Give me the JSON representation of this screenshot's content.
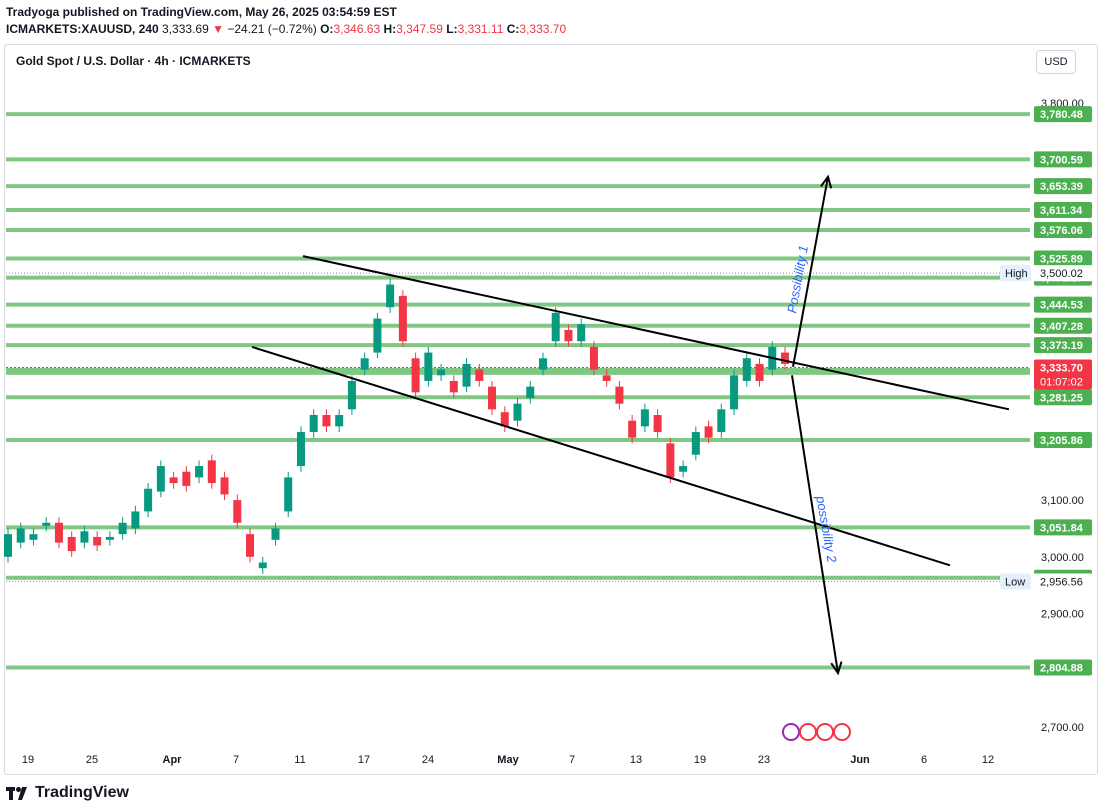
{
  "header": {
    "publisher_line": "Tradyoga published on TradingView.com, May 26, 2025 03:54:59 EST",
    "symbol": "ICMARKETS:XAUUSD, 240",
    "last": "3,333.69",
    "arrow": "▼",
    "change": "−24.21 (−0.72%)",
    "o_label": "O:",
    "o_value": "3,346.63",
    "h_label": "H:",
    "h_value": "3,347.59",
    "l_label": "L:",
    "l_value": "3,331.11",
    "c_label": "C:",
    "c_value": "3,333.70"
  },
  "chart_title": "Gold Spot / U.S. Dollar · 4h · ICMARKETS",
  "currency_button": "USD",
  "footer": {
    "brand": "TradingView",
    "logo_icon": "tradingview-logo-icon"
  },
  "colors": {
    "level_line": "#81c784",
    "level_label": "#4caf50",
    "candle_up": "#089981",
    "candle_down": "#f23645",
    "last_price": "#f23645",
    "annotation_text": "#2962ff",
    "trendline": "#000000"
  },
  "chart_data": {
    "type": "candlestick",
    "symbol": "XAUUSD",
    "interval": "4h",
    "ylim": [
      2660,
      3850
    ],
    "y_ticks": [
      {
        "value": 2700,
        "label": "2,700.00"
      },
      {
        "value": 2900,
        "label": "2,900.00"
      },
      {
        "value": 3000,
        "label": "3,000.00"
      },
      {
        "value": 3100,
        "label": "3,100.00"
      },
      {
        "value": 3800,
        "label": "3,800.00"
      }
    ],
    "x_ticks": [
      {
        "label": "19",
        "bold": false
      },
      {
        "label": "25",
        "bold": false
      },
      {
        "label": "Apr",
        "bold": true
      },
      {
        "label": "7",
        "bold": false
      },
      {
        "label": "11",
        "bold": false
      },
      {
        "label": "17",
        "bold": false
      },
      {
        "label": "24",
        "bold": false
      },
      {
        "label": "May",
        "bold": true
      },
      {
        "label": "7",
        "bold": false
      },
      {
        "label": "13",
        "bold": false
      },
      {
        "label": "19",
        "bold": false
      },
      {
        "label": "23",
        "bold": false
      },
      {
        "label": "Jun",
        "bold": true
      },
      {
        "label": "6",
        "bold": false
      },
      {
        "label": "12",
        "bold": false
      }
    ],
    "levels": [
      {
        "value": 3780.48,
        "label": "3,780.48"
      },
      {
        "value": 3700.59,
        "label": "3,700.59"
      },
      {
        "value": 3653.39,
        "label": "3,653.39"
      },
      {
        "value": 3611.34,
        "label": "3,611.34"
      },
      {
        "value": 3576.06,
        "label": "3,576.06"
      },
      {
        "value": 3525.89,
        "label": "3,525.89"
      },
      {
        "value": 3492.19,
        "label": "3,492.19"
      },
      {
        "value": 3444.53,
        "label": "3,444.53"
      },
      {
        "value": 3407.28,
        "label": "3,407.28"
      },
      {
        "value": 3373.19,
        "label": "3,373.19"
      },
      {
        "value": 3329.49,
        "label": "3,329.49"
      },
      {
        "value": 3324.29,
        "label": "3,324.29"
      },
      {
        "value": 3281.25,
        "label": "3,281.25"
      },
      {
        "value": 3205.86,
        "label": "3,205.86"
      },
      {
        "value": 3051.84,
        "label": "3,051.84"
      },
      {
        "value": 2963.15,
        "label": "2,963.15"
      },
      {
        "value": 2804.88,
        "label": "2,804.88"
      }
    ],
    "high": {
      "label": "High",
      "value": 3500.02,
      "value_label": "3,500.02"
    },
    "low": {
      "label": "Low",
      "value": 2956.56,
      "value_label": "2,956.56"
    },
    "last_price": {
      "value": 3333.7,
      "label": "3,333.70",
      "countdown": "01:07:02"
    },
    "price_path": [
      [
        3000,
        3040
      ],
      [
        3025,
        3050
      ],
      [
        3030,
        3040
      ],
      [
        3055,
        3060
      ],
      [
        3060,
        3025
      ],
      [
        3035,
        3010
      ],
      [
        3025,
        3045
      ],
      [
        3035,
        3020
      ],
      [
        3030,
        3035
      ],
      [
        3040,
        3060
      ],
      [
        3050,
        3080
      ],
      [
        3080,
        3120
      ],
      [
        3115,
        3160
      ],
      [
        3140,
        3130
      ],
      [
        3150,
        3125
      ],
      [
        3140,
        3160
      ],
      [
        3170,
        3130
      ],
      [
        3140,
        3110
      ],
      [
        3100,
        3060
      ],
      [
        3040,
        3000
      ],
      [
        2980,
        2990
      ],
      [
        3030,
        3050
      ],
      [
        3080,
        3140
      ],
      [
        3160,
        3220
      ],
      [
        3220,
        3250
      ],
      [
        3250,
        3230
      ],
      [
        3230,
        3250
      ],
      [
        3260,
        3310
      ],
      [
        3330,
        3350
      ],
      [
        3360,
        3420
      ],
      [
        3440,
        3480
      ],
      [
        3460,
        3380
      ],
      [
        3350,
        3290
      ],
      [
        3310,
        3360
      ],
      [
        3320,
        3330
      ],
      [
        3310,
        3290
      ],
      [
        3300,
        3340
      ],
      [
        3330,
        3310
      ],
      [
        3300,
        3260
      ],
      [
        3255,
        3230
      ],
      [
        3240,
        3270
      ],
      [
        3280,
        3300
      ],
      [
        3330,
        3350
      ],
      [
        3380,
        3430
      ],
      [
        3400,
        3380
      ],
      [
        3380,
        3410
      ],
      [
        3370,
        3330
      ],
      [
        3320,
        3310
      ],
      [
        3300,
        3270
      ],
      [
        3240,
        3210
      ],
      [
        3230,
        3260
      ],
      [
        3250,
        3220
      ],
      [
        3200,
        3140
      ],
      [
        3150,
        3160
      ],
      [
        3180,
        3220
      ],
      [
        3230,
        3210
      ],
      [
        3220,
        3260
      ],
      [
        3260,
        3320
      ],
      [
        3310,
        3350
      ],
      [
        3340,
        3310
      ],
      [
        3330,
        3370
      ],
      [
        3360,
        3340
      ]
    ],
    "trendlines": [
      {
        "name": "upper-channel-line",
        "from": [
          "Apr 14",
          3530
        ],
        "to": [
          "Jun 12",
          3260
        ]
      },
      {
        "name": "lower-channel-line",
        "from": [
          "Apr 8",
          3370
        ],
        "to": [
          "Jun 8",
          2985
        ]
      }
    ],
    "projections": [
      {
        "label": "Possibility 1",
        "from": 3335,
        "to": 3670
      },
      {
        "label": "possibility 2",
        "from": 3320,
        "to": 2795
      }
    ]
  }
}
